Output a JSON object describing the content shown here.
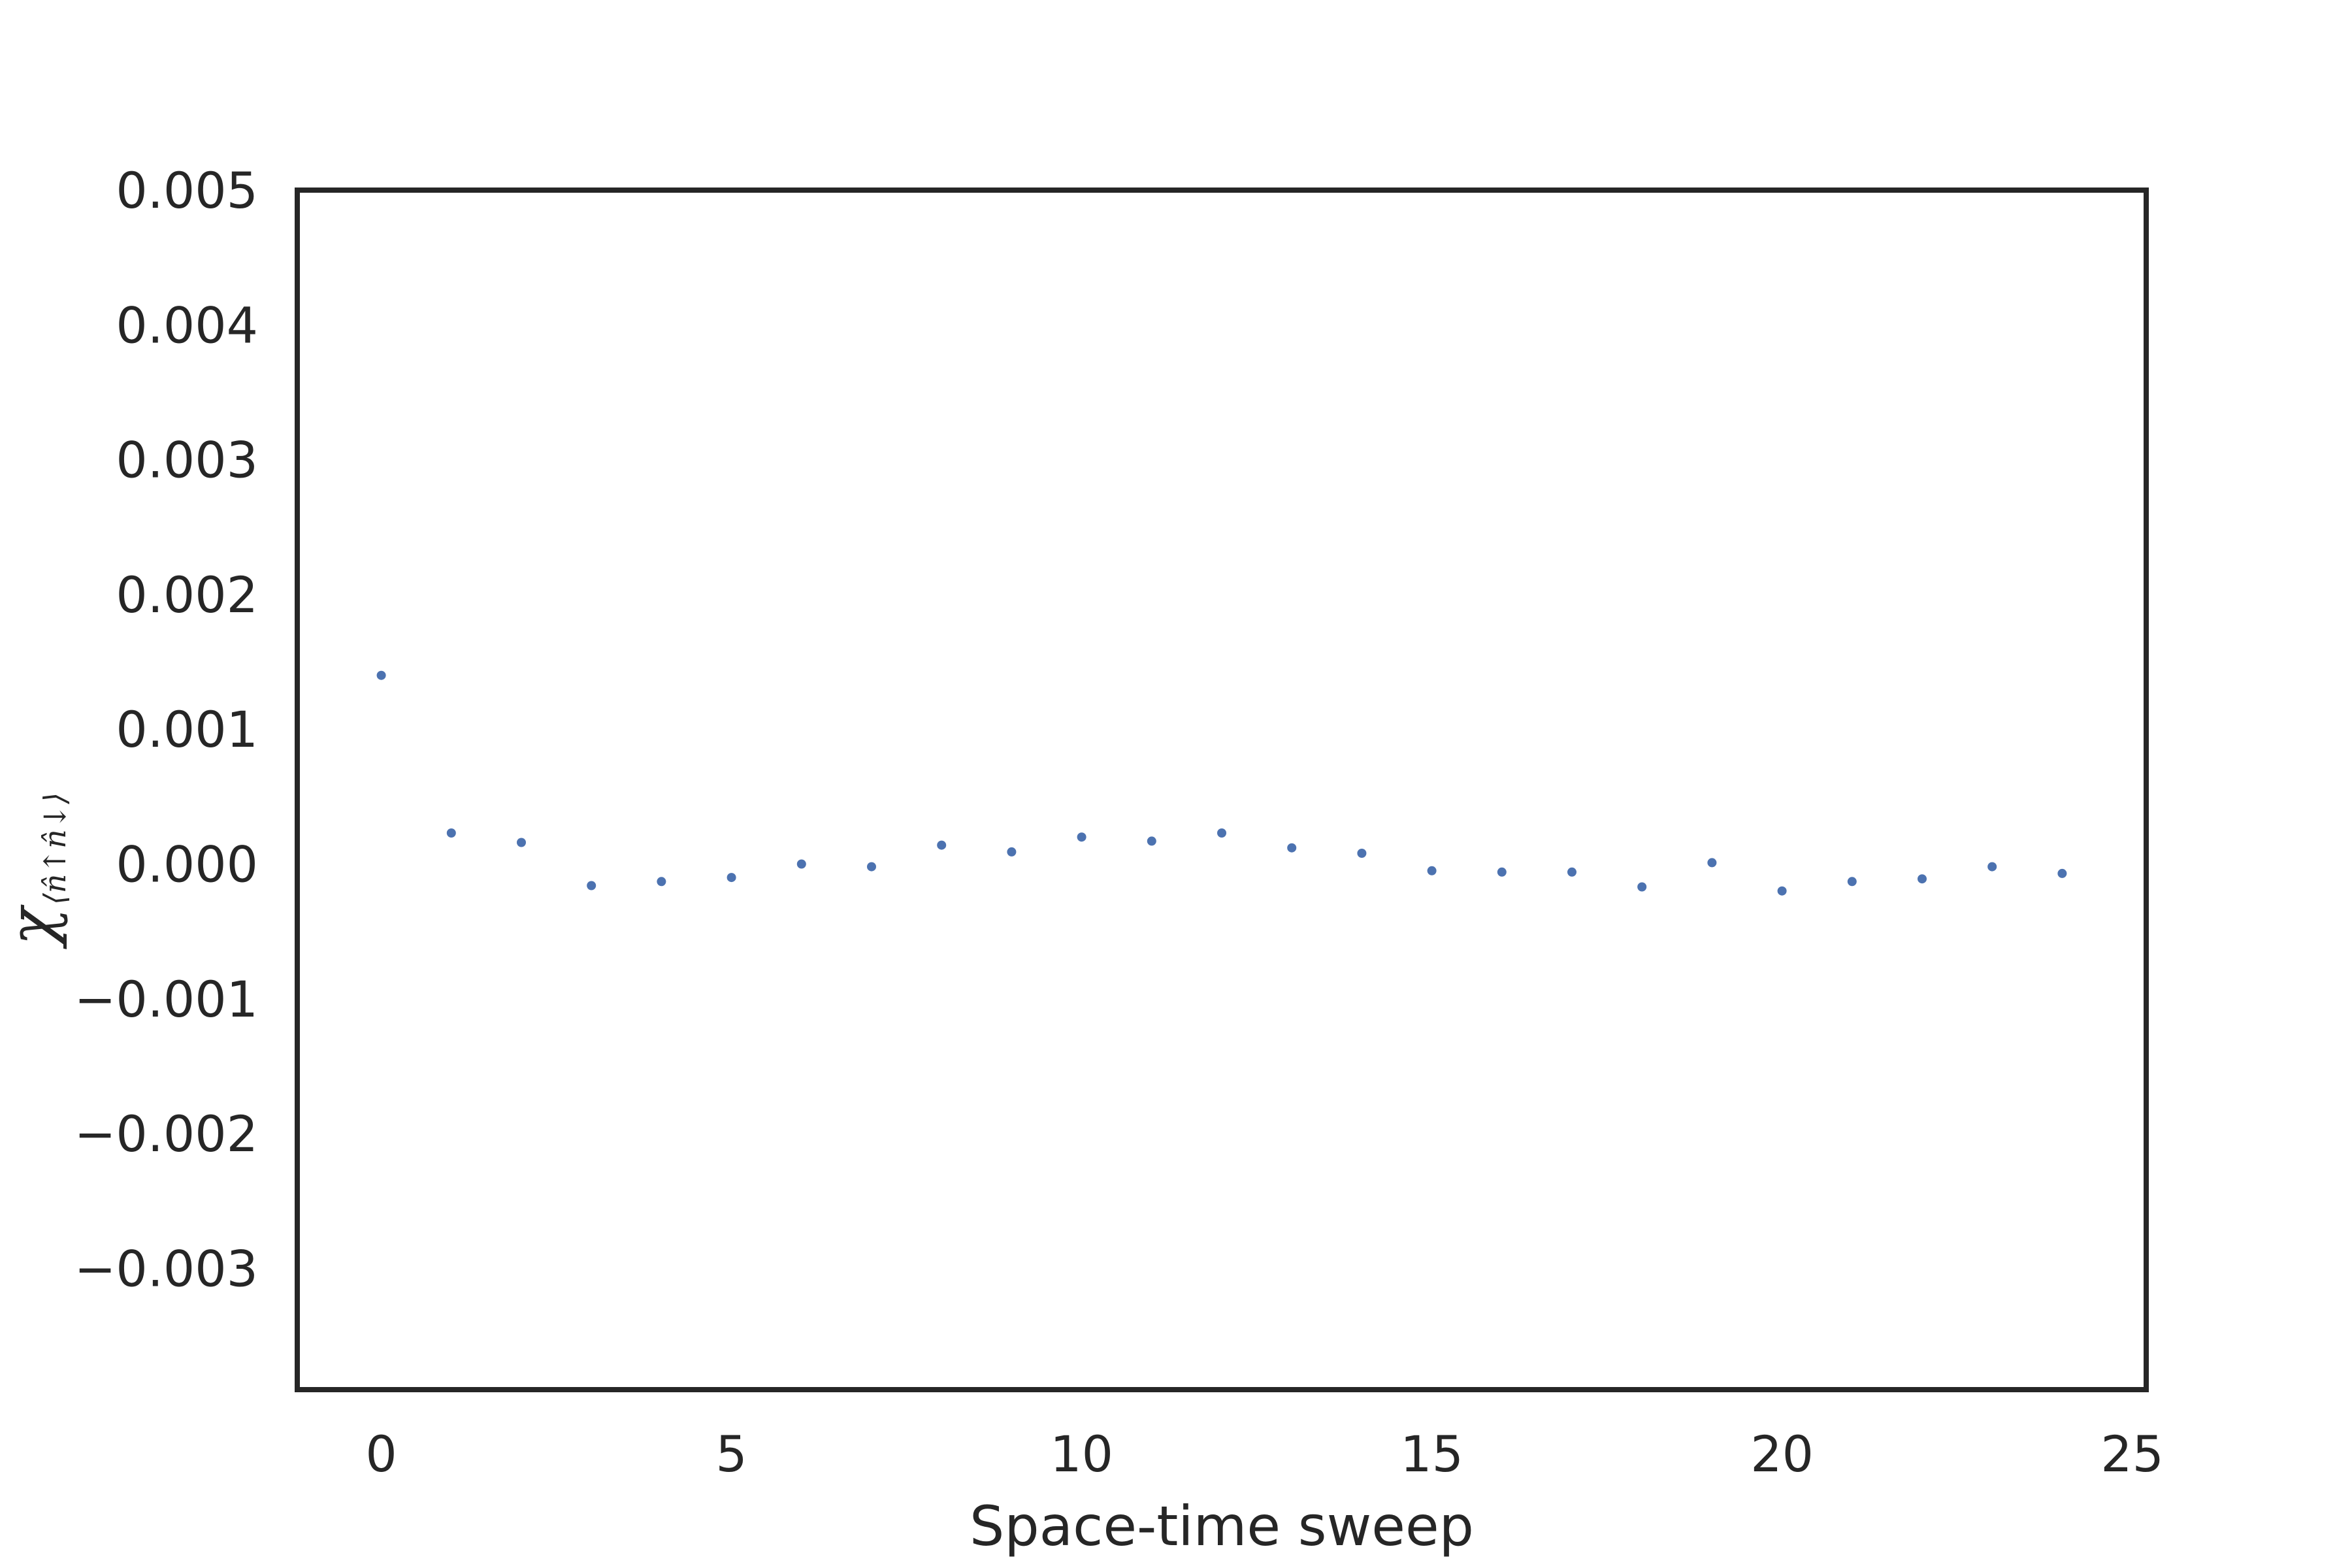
{
  "chart_data": {
    "type": "scatter",
    "title": "",
    "xlabel": "Space-time sweep",
    "ylabel": {
      "main": "χ",
      "subscript": "⟨n̂↑n̂↓⟩"
    },
    "xlim": [
      -1.2,
      25.2
    ],
    "ylim": [
      -0.0039,
      0.005
    ],
    "xticks": [
      0,
      5,
      10,
      15,
      20,
      25
    ],
    "xtick_labels": [
      "0",
      "5",
      "10",
      "15",
      "20",
      "25"
    ],
    "yticks": [
      0.005,
      0.004,
      0.003,
      0.002,
      0.001,
      0.0,
      -0.001,
      -0.002,
      -0.003
    ],
    "ytick_labels": [
      "0.005",
      "0.004",
      "0.003",
      "0.002",
      "0.001",
      "0.000",
      "−0.001",
      "−0.002",
      "−0.003"
    ],
    "grid": false,
    "marker_color": "#4c72b0",
    "frame_color": "#262626",
    "x": [
      0,
      1,
      2,
      3,
      4,
      5,
      6,
      7,
      8,
      9,
      10,
      11,
      12,
      13,
      14,
      15,
      16,
      17,
      18,
      19,
      20,
      21,
      22,
      23,
      24
    ],
    "y": [
      0.0014,
      0.00023,
      0.00016,
      -0.00016,
      -0.00013,
      -0.0001,
      0.0,
      -2e-05,
      0.00014,
      9e-05,
      0.0002,
      0.00017,
      0.00023,
      0.00012,
      8e-05,
      -5e-05,
      -6e-05,
      -6e-05,
      -0.00017,
      1e-05,
      -0.0002,
      -0.00013,
      -0.00011,
      -2e-05,
      -7e-05
    ]
  }
}
